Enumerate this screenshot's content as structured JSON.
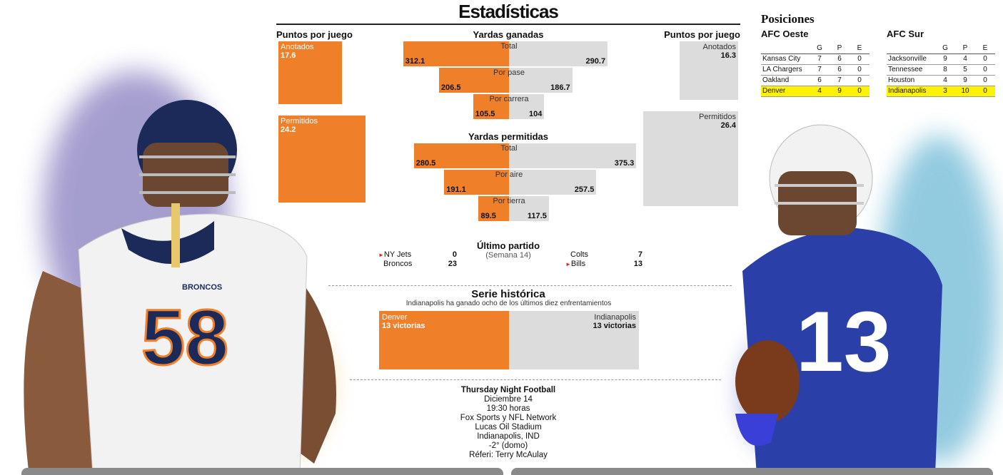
{
  "title": "Estadísticas",
  "points_per_game": {
    "header_left": "Puntos por juego",
    "header_right": "Puntos por juego",
    "left": [
      {
        "label": "Anotados",
        "value": "17.6"
      },
      {
        "label": "Permitidos",
        "value": "24.2"
      }
    ],
    "right": [
      {
        "label": "Anotados",
        "value": "16.3"
      },
      {
        "label": "Permitidos",
        "value": "26.4"
      }
    ]
  },
  "yards_gained": {
    "header": "Yardas ganadas",
    "rows": [
      {
        "label": "Total",
        "left": "312.1",
        "right": "290.7"
      },
      {
        "label": "Por pase",
        "left": "206.5",
        "right": "186.7"
      },
      {
        "label": "Por carrera",
        "left": "105.5",
        "right": "104"
      }
    ]
  },
  "yards_allowed": {
    "header": "Yardas permitidas",
    "rows": [
      {
        "label": "Total",
        "left": "280.5",
        "right": "375.3"
      },
      {
        "label": "Por aire",
        "left": "191.1",
        "right": "257.5"
      },
      {
        "label": "Por tierra",
        "left": "89.5",
        "right": "117.5"
      }
    ]
  },
  "last_game": {
    "header": "Último partido",
    "week": "(Semana 14)",
    "left": [
      {
        "team": "NY Jets",
        "score": "0"
      },
      {
        "team": "Broncos",
        "score": "23"
      }
    ],
    "right": [
      {
        "team": "Colts",
        "score": "7"
      },
      {
        "team": "Bills",
        "score": "13"
      }
    ]
  },
  "series": {
    "header": "Serie histórica",
    "subtitle": "Indianapolis ha ganado ocho de los últimos diez enfrentamientos",
    "left": {
      "team": "Denver",
      "value": "13 victorias"
    },
    "right": {
      "team": "Indianapolis",
      "value": "13 victorias"
    }
  },
  "game_info": {
    "title": "Thursday Night Football",
    "lines": [
      "Diciembre 14",
      "19:30 horas",
      "Fox Sports y NFL Network",
      "Lucas Oil Stadium",
      "Indianapolis, IND",
      "-2° (domo)",
      "Réferi: Terry McAulay"
    ]
  },
  "standings": {
    "header": "Posiciones",
    "cols": [
      "G",
      "P",
      "E"
    ],
    "west": {
      "name": "AFC Oeste",
      "rows": [
        {
          "team": "Kansas City",
          "g": "7",
          "p": "6",
          "e": "0"
        },
        {
          "team": "LA Chargers",
          "g": "7",
          "p": "6",
          "e": "0"
        },
        {
          "team": "Oakland",
          "g": "6",
          "p": "7",
          "e": "0"
        },
        {
          "team": "Denver",
          "g": "4",
          "p": "9",
          "e": "0"
        }
      ]
    },
    "south": {
      "name": "AFC Sur",
      "rows": [
        {
          "team": "Jacksonville",
          "g": "9",
          "p": "4",
          "e": "0"
        },
        {
          "team": "Tennessee",
          "g": "8",
          "p": "5",
          "e": "0"
        },
        {
          "team": "Houston",
          "g": "4",
          "p": "9",
          "e": "0"
        },
        {
          "team": "Indianapolis",
          "g": "3",
          "p": "10",
          "e": "0"
        }
      ]
    }
  },
  "players": {
    "left_jersey": "58",
    "left_brand": "BRONCOS",
    "right_jersey": "13"
  },
  "colors": {
    "denver": "#f07f2a",
    "indy": "#dcdcdc",
    "highlight": "#fff200"
  },
  "chart_data": {
    "type": "bar",
    "title": "Estadísticas",
    "series": [
      {
        "name": "Denver",
        "points_scored": 17.6,
        "points_allowed": 24.2,
        "yards_gained": [
          312.1,
          206.5,
          105.5
        ],
        "yards_allowed": [
          280.5,
          191.1,
          89.5
        ]
      },
      {
        "name": "Indianapolis",
        "points_scored": 16.3,
        "points_allowed": 26.4,
        "yards_gained": [
          290.7,
          186.7,
          104
        ],
        "yards_allowed": [
          375.3,
          257.5,
          117.5
        ]
      }
    ],
    "categories_gained": [
      "Total",
      "Por pase",
      "Por carrera"
    ],
    "categories_allowed": [
      "Total",
      "Por aire",
      "Por tierra"
    ],
    "series_wins": {
      "Denver": 13,
      "Indianapolis": 13
    }
  }
}
